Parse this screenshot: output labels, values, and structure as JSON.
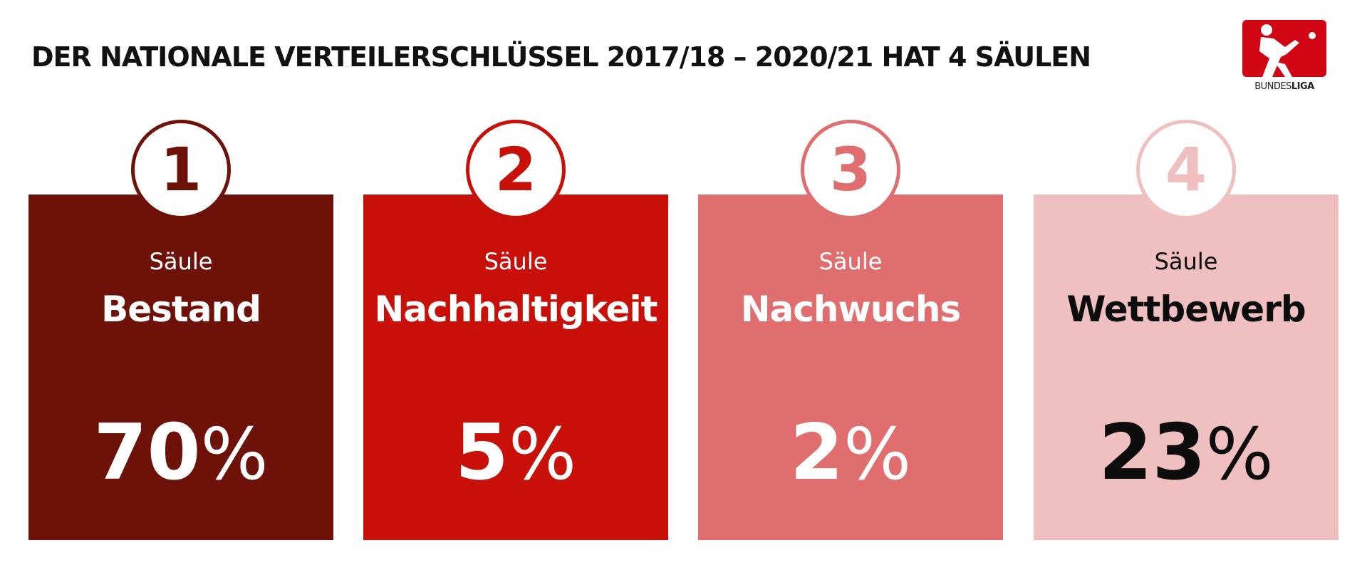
{
  "title": "DER NATIONALE VERTEILERSCHLÜSSEL 2017/18 – 2020/21 HAT 4 SÄULEN",
  "logo": {
    "text_part1": "BUNDES",
    "text_part2": "LIGA",
    "color": "#d20515"
  },
  "pillars": [
    {
      "number": "1",
      "prefix": "Säule",
      "name": "Bestand",
      "value": "70",
      "unit": "%",
      "color": "#6e1108"
    },
    {
      "number": "2",
      "prefix": "Säule",
      "name": "Nachhaltigkeit",
      "value": "5",
      "unit": "%",
      "color": "#c80f08"
    },
    {
      "number": "3",
      "prefix": "Säule",
      "name": "Nachwuchs",
      "value": "2",
      "unit": "%",
      "color": "#e06e6e"
    },
    {
      "number": "4",
      "prefix": "Säule",
      "name": "Wettbewerb",
      "value": "23",
      "unit": "%",
      "color": "#f0bfbf"
    }
  ]
}
